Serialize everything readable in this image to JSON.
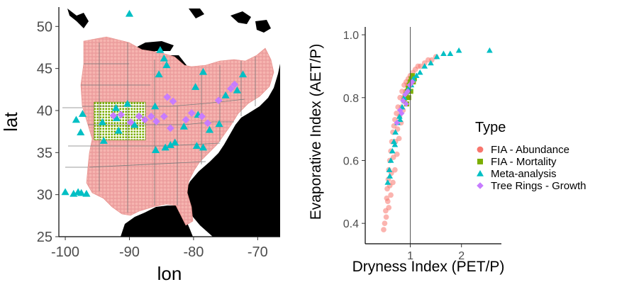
{
  "chart_data": [
    {
      "type": "map",
      "xlabel": "lon",
      "ylabel": "lat",
      "xlim": [
        -101,
        -66.5
      ],
      "ylim": [
        25,
        52.3
      ],
      "x_ticks": [
        -100,
        -90,
        -80,
        -70
      ],
      "x_tick_labels": [
        "-100",
        "-90",
        "-80",
        "-70"
      ],
      "y_ticks": [
        25,
        30,
        35,
        40,
        45,
        50
      ],
      "y_tick_labels": [
        "25",
        "30",
        "35",
        "40",
        "45",
        "50"
      ],
      "grid": false,
      "series": [
        {
          "name": "FIA - Abundance",
          "marker": "circle",
          "color": "#F8766D",
          "note_region": "eastern United States forest grid"
        },
        {
          "name": "FIA - Mortality",
          "marker": "square",
          "color": "#7CAE00",
          "region_bounds": {
            "lon": [
              -95.5,
              -87.5
            ],
            "lat": [
              36.5,
              41
            ]
          }
        },
        {
          "name": "Meta-analysis",
          "marker": "triangle",
          "color": "#00BFC4",
          "points": [
            [
              -90,
              51.5
            ],
            [
              -85.2,
              47.2
            ],
            [
              -84.6,
              46.2
            ],
            [
              -84.2,
              45.4
            ],
            [
              -85.4,
              44.3
            ],
            [
              -78.5,
              44.6
            ],
            [
              -75,
              41.8
            ],
            [
              -79.3,
              39.5
            ],
            [
              -86,
              40.5
            ],
            [
              -92,
              39.1
            ],
            [
              -89.2,
              38.3
            ],
            [
              -94,
              36.4
            ],
            [
              -85.9,
              35.3
            ],
            [
              -84.4,
              35.6
            ],
            [
              -83.6,
              35.9
            ],
            [
              -82.9,
              36.2
            ],
            [
              -79.5,
              35.8
            ],
            [
              -78.5,
              35.6
            ],
            [
              -81.5,
              38.1
            ],
            [
              -77.5,
              37.7
            ],
            [
              -76,
              38.4
            ],
            [
              -73.2,
              42.4
            ],
            [
              -72.3,
              44.3
            ],
            [
              -79.7,
              42.8
            ],
            [
              -98.3,
              38.9
            ],
            [
              -97.3,
              39.6
            ],
            [
              -97.6,
              37.4
            ],
            [
              -100,
              30.3
            ],
            [
              -98.7,
              30.1
            ],
            [
              -98,
              30.3
            ],
            [
              -97.5,
              30.2
            ],
            [
              -96.7,
              30.1
            ],
            [
              -90.3,
              40.8
            ],
            [
              -92.1,
              40.3
            ],
            [
              -91.7,
              37.6
            ],
            [
              -94.2,
              38.6
            ]
          ]
        },
        {
          "name": "Tree Rings - Growth",
          "marker": "diamond",
          "color": "#C77CFF",
          "points": [
            [
              -92.5,
              39.4
            ],
            [
              -91.3,
              39.5
            ],
            [
              -89.8,
              38.6
            ],
            [
              -88.5,
              39.3
            ],
            [
              -87.6,
              38.9
            ],
            [
              -86.6,
              39.3
            ],
            [
              -85.8,
              38.7
            ],
            [
              -84.6,
              39.3
            ],
            [
              -83.6,
              37.9
            ],
            [
              -81.2,
              38.9
            ],
            [
              -80.3,
              39.7
            ],
            [
              -78.7,
              39.3
            ],
            [
              -77.8,
              38.5
            ],
            [
              -76.1,
              41.2
            ],
            [
              -74.2,
              42.6
            ],
            [
              -73.6,
              43.1
            ],
            [
              -83.2,
              41.1
            ],
            [
              -84.1,
              41.6
            ]
          ]
        }
      ]
    },
    {
      "type": "scatter",
      "xlabel": "Dryness Index (PET/P)",
      "ylabel": "Evaporative Index (AET/P)",
      "xlim": [
        0.12,
        2.78
      ],
      "ylim": [
        0.335,
        1.025
      ],
      "x_ticks": [
        1,
        2
      ],
      "x_tick_labels": [
        "1",
        "2"
      ],
      "y_ticks": [
        0.4,
        0.6,
        0.8,
        1.0
      ],
      "y_tick_labels": [
        "0.4",
        "0.6",
        "0.8",
        "1.0"
      ],
      "reference_line_x": 1,
      "grid": false,
      "legend": {
        "title": "Type",
        "placement": "right",
        "entries": [
          "FIA - Abundance",
          "FIA - Mortality",
          "Meta-analysis",
          "Tree Rings - Growth"
        ]
      },
      "series": [
        {
          "name": "FIA - Abundance",
          "marker": "circle",
          "color": "#F8766D",
          "points": [
            [
              0.5,
              0.4
            ],
            [
              0.52,
              0.44
            ],
            [
              0.54,
              0.48
            ],
            [
              0.55,
              0.51
            ],
            [
              0.57,
              0.54
            ],
            [
              0.58,
              0.57
            ],
            [
              0.6,
              0.6
            ],
            [
              0.62,
              0.63
            ],
            [
              0.64,
              0.66
            ],
            [
              0.66,
              0.69
            ],
            [
              0.68,
              0.71
            ],
            [
              0.7,
              0.73
            ],
            [
              0.73,
              0.75
            ],
            [
              0.76,
              0.77
            ],
            [
              0.8,
              0.8
            ],
            [
              0.84,
              0.82
            ],
            [
              0.88,
              0.84
            ],
            [
              0.92,
              0.85
            ],
            [
              0.96,
              0.86
            ],
            [
              1.0,
              0.87
            ],
            [
              1.05,
              0.88
            ],
            [
              1.1,
              0.89
            ],
            [
              1.15,
              0.9
            ],
            [
              1.2,
              0.9
            ],
            [
              1.28,
              0.91
            ],
            [
              1.35,
              0.92
            ],
            [
              1.42,
              0.92
            ],
            [
              1.5,
              0.93
            ],
            [
              0.56,
              0.47
            ],
            [
              0.6,
              0.52
            ],
            [
              0.63,
              0.56
            ],
            [
              0.67,
              0.61
            ],
            [
              0.71,
              0.66
            ],
            [
              0.75,
              0.7
            ],
            [
              0.79,
              0.74
            ],
            [
              0.83,
              0.77
            ],
            [
              0.87,
              0.8
            ],
            [
              0.91,
              0.82
            ],
            [
              0.95,
              0.84
            ],
            [
              0.99,
              0.85
            ],
            [
              0.48,
              0.38
            ],
            [
              0.53,
              0.42
            ],
            [
              0.58,
              0.45
            ],
            [
              0.62,
              0.49
            ],
            [
              0.66,
              0.53
            ],
            [
              0.7,
              0.57
            ],
            [
              0.74,
              0.62
            ],
            [
              0.78,
              0.67
            ],
            [
              0.82,
              0.72
            ],
            [
              0.86,
              0.76
            ]
          ]
        },
        {
          "name": "FIA - Mortality",
          "marker": "square",
          "color": "#7CAE00",
          "points": [
            [
              0.88,
              0.79
            ],
            [
              0.9,
              0.8
            ],
            [
              0.92,
              0.81
            ],
            [
              0.94,
              0.82
            ],
            [
              0.96,
              0.83
            ],
            [
              0.98,
              0.84
            ],
            [
              1.0,
              0.85
            ],
            [
              1.02,
              0.86
            ],
            [
              1.04,
              0.87
            ],
            [
              1.06,
              0.85
            ],
            [
              1.08,
              0.86
            ],
            [
              0.93,
              0.78
            ],
            [
              0.97,
              0.8
            ],
            [
              1.01,
              0.82
            ]
          ]
        },
        {
          "name": "Meta-analysis",
          "marker": "triangle",
          "color": "#00BFC4",
          "points": [
            [
              0.56,
              0.53
            ],
            [
              0.59,
              0.57
            ],
            [
              0.62,
              0.6
            ],
            [
              0.65,
              0.63
            ],
            [
              0.68,
              0.66
            ],
            [
              0.71,
              0.69
            ],
            [
              0.75,
              0.72
            ],
            [
              0.79,
              0.74
            ],
            [
              0.84,
              0.77
            ],
            [
              0.88,
              0.8
            ],
            [
              0.93,
              0.82
            ],
            [
              0.97,
              0.83
            ],
            [
              1.02,
              0.84
            ],
            [
              1.06,
              0.86
            ],
            [
              1.12,
              0.87
            ],
            [
              1.19,
              0.88
            ],
            [
              1.28,
              0.9
            ],
            [
              1.4,
              0.91
            ],
            [
              1.52,
              0.93
            ],
            [
              1.65,
              0.94
            ],
            [
              1.78,
              0.94
            ],
            [
              1.95,
              0.95
            ],
            [
              2.55,
              0.95
            ],
            [
              0.6,
              0.55
            ],
            [
              0.7,
              0.65
            ],
            [
              0.8,
              0.73
            ]
          ]
        },
        {
          "name": "Tree Rings - Growth",
          "marker": "diamond",
          "color": "#C77CFF",
          "points": [
            [
              0.74,
              0.72
            ],
            [
              0.8,
              0.76
            ],
            [
              0.86,
              0.79
            ],
            [
              0.9,
              0.81
            ],
            [
              0.95,
              0.82
            ],
            [
              0.99,
              0.84
            ],
            [
              1.04,
              0.85
            ],
            [
              0.83,
              0.75
            ],
            [
              0.92,
              0.78
            ]
          ]
        }
      ]
    }
  ]
}
